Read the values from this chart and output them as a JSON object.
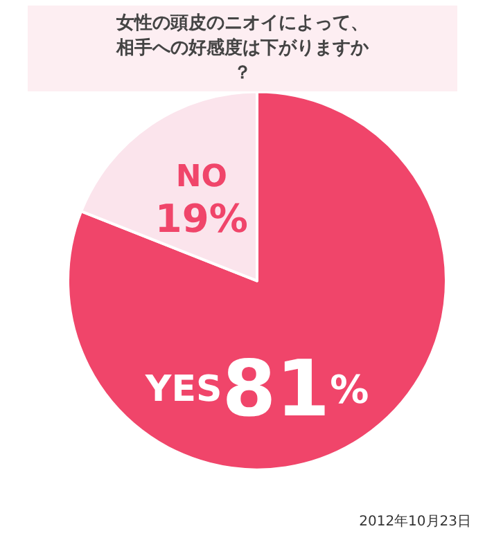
{
  "chart_data": {
    "type": "pie",
    "title": "女性の頭皮のニオイによって、相手への好感度は下がりますか？",
    "categories": [
      "YES",
      "NO"
    ],
    "values": [
      81,
      19
    ],
    "value_labels": [
      "81%",
      "19%"
    ],
    "colors": [
      "#f0456a",
      "#fbe4ec"
    ],
    "data_labels": true,
    "legend": false,
    "annotations": [
      "2012年10月23日"
    ]
  }
}
